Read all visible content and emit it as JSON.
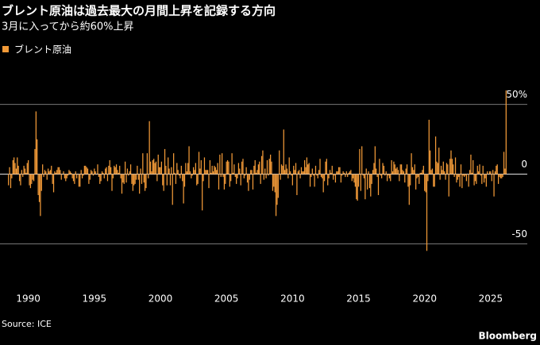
{
  "chart_data": {
    "type": "bar",
    "title": "ブレント原油は過去最大の月間上昇を記録する方向",
    "subtitle": "3月に入ってから約60%上昇",
    "source": "Source: ICE",
    "brand": "Bloomberg",
    "categories": [
      null,
      null,
      null,
      null,
      null,
      null,
      null,
      null,
      null,
      null,
      null,
      null,
      null,
      null,
      null,
      null,
      null,
      null,
      "1990",
      null,
      null,
      null,
      null,
      null,
      null,
      null,
      null,
      null,
      null,
      null,
      null,
      null,
      null,
      null,
      null,
      null,
      null,
      null,
      null,
      null,
      null,
      null,
      null,
      null,
      null,
      null,
      null,
      null,
      null,
      null,
      null,
      null,
      null,
      null,
      null,
      null,
      null,
      null,
      null,
      null,
      null,
      null,
      null,
      null,
      null,
      null,
      null,
      null,
      null,
      null,
      null,
      null,
      null,
      null,
      null,
      null,
      null,
      null,
      "1995",
      null,
      null,
      null,
      null,
      null,
      null,
      null,
      null,
      null,
      null,
      null,
      null,
      null,
      null,
      null,
      null,
      null,
      null,
      null,
      null,
      null,
      null,
      null,
      null,
      null,
      null,
      null,
      null,
      null,
      null,
      null,
      null,
      null,
      null,
      null,
      null,
      null,
      null,
      null,
      null,
      null,
      null,
      null,
      null,
      null,
      null,
      null,
      null,
      null,
      null,
      null,
      null,
      null,
      null,
      null,
      null,
      null,
      null,
      null,
      "2000",
      null,
      null,
      null,
      null,
      null,
      null,
      null,
      null,
      null,
      null,
      null,
      null,
      null,
      null,
      null,
      null,
      null,
      null,
      null,
      null,
      null,
      null,
      null,
      null,
      null,
      null,
      null,
      null,
      null,
      null,
      null,
      null,
      null,
      null,
      null,
      null,
      null,
      null,
      null,
      null,
      null,
      null,
      null,
      null,
      null,
      null,
      null,
      null,
      null,
      null,
      null,
      null,
      null,
      null,
      null,
      null,
      null,
      null,
      null,
      "2005",
      null,
      null,
      null,
      null,
      null,
      null,
      null,
      null,
      null,
      null,
      null,
      null,
      null,
      null,
      null,
      null,
      null,
      null,
      null,
      null,
      null,
      null,
      null,
      null,
      null,
      null,
      null,
      null,
      null,
      null,
      null,
      null,
      null,
      null,
      null,
      null,
      null,
      null,
      null,
      null,
      null,
      null,
      null,
      null,
      null,
      null,
      null,
      null,
      null,
      null,
      null,
      null,
      null,
      null,
      null,
      null,
      null,
      null,
      null,
      "2010",
      null,
      null,
      null,
      null,
      null,
      null,
      null,
      null,
      null,
      null,
      null,
      null,
      null,
      null,
      null,
      null,
      null,
      null,
      null,
      null,
      null,
      null,
      null,
      null,
      null,
      null,
      null,
      null,
      null,
      null,
      null,
      null,
      null,
      null,
      null,
      null,
      null,
      null,
      null,
      null,
      null,
      null,
      null,
      null,
      null,
      null,
      null,
      null,
      null,
      null,
      null,
      null,
      null,
      null,
      null,
      null,
      null,
      null,
      null,
      "2015",
      null,
      null,
      null,
      null,
      null,
      null,
      null,
      null,
      null,
      null,
      null,
      null,
      null,
      null,
      null,
      null,
      null,
      null,
      null,
      null,
      null,
      null,
      null,
      null,
      null,
      null,
      null,
      null,
      null,
      null,
      null,
      null,
      null,
      null,
      null,
      null,
      null,
      null,
      null,
      null,
      null,
      null,
      null,
      null,
      null,
      null,
      null,
      null,
      null,
      null,
      null,
      null,
      null,
      null,
      null,
      null,
      null,
      null,
      null,
      "2020",
      null,
      null,
      null,
      null,
      null,
      null,
      null,
      null,
      null,
      null,
      null,
      null,
      null,
      null,
      null,
      null,
      null,
      null,
      null,
      null,
      null,
      null,
      null,
      null,
      null,
      null,
      null,
      null,
      null,
      null,
      null,
      null,
      null,
      null,
      null,
      null,
      null,
      null,
      null,
      null,
      null,
      null,
      null,
      null,
      null,
      null,
      null,
      null,
      null,
      null,
      null,
      null,
      null,
      null,
      null,
      null,
      null,
      null,
      null,
      "2025",
      null,
      null,
      null,
      null,
      null,
      null,
      null,
      null,
      null,
      null,
      null,
      null,
      null,
      null
    ],
    "series": [
      {
        "name": "ブレント原油",
        "color": "#f29a38",
        "values": [
          -8,
          5,
          -10,
          -3,
          10,
          12,
          8,
          4,
          12,
          6,
          -5,
          -8,
          3,
          -2,
          6,
          4,
          1,
          8,
          10,
          -8,
          -10,
          -7,
          -4,
          -5,
          18,
          45,
          25,
          -15,
          -20,
          -30,
          -12,
          7,
          -2,
          3,
          2,
          -4,
          4,
          2,
          3,
          6,
          -7,
          -13,
          2,
          1,
          3,
          5,
          5,
          3,
          -4,
          0,
          2,
          -3,
          -5,
          -3,
          -1,
          3,
          2,
          1,
          -3,
          -5,
          -7,
          2,
          -3,
          0,
          -9,
          -9,
          3,
          -3,
          -1,
          6,
          6,
          5,
          4,
          -7,
          -4,
          3,
          2,
          -1,
          4,
          2,
          0,
          7,
          -2,
          -7,
          -5,
          2,
          1,
          -3,
          4,
          5,
          -5,
          6,
          10,
          5,
          -12,
          -3,
          6,
          5,
          7,
          3,
          1,
          6,
          -3,
          -14,
          -6,
          -7,
          9,
          -6,
          4,
          -1,
          2,
          7,
          -7,
          -12,
          -8,
          -7,
          -4,
          6,
          -4,
          -14,
          4,
          -7,
          15,
          -6,
          -12,
          -10,
          15,
          -3,
          38,
          9,
          2,
          10,
          11,
          8,
          9,
          -5,
          14,
          5,
          5,
          9,
          -8,
          -12,
          18,
          6,
          -8,
          12,
          4,
          -8,
          5,
          -22,
          15,
          1,
          -7,
          8,
          3,
          -1,
          -3,
          6,
          -5,
          -21,
          -9,
          8,
          2,
          8,
          20,
          2,
          -3,
          -1,
          5,
          3,
          8,
          -8,
          -7,
          16,
          4,
          10,
          -26,
          -5,
          12,
          3,
          3,
          3,
          -10,
          10,
          1,
          6,
          2,
          6,
          5,
          3,
          8,
          -11,
          14,
          -2,
          15,
          -2,
          -11,
          -7,
          9,
          10,
          9,
          -9,
          -5,
          15,
          1,
          7,
          -2,
          -7,
          -3,
          8,
          4,
          -8,
          9,
          11,
          -3,
          -1,
          5,
          -6,
          -12,
          -4,
          3,
          3,
          -11,
          6,
          10,
          1,
          3,
          7,
          9,
          -7,
          13,
          17,
          -4,
          4,
          -3,
          10,
          -1,
          11,
          14,
          9,
          -12,
          -9,
          -13,
          -30,
          -22,
          -17,
          17,
          -4,
          7,
          6,
          32,
          3,
          7,
          4,
          -3,
          12,
          2,
          -1,
          -8,
          6,
          3,
          8,
          -15,
          2,
          3,
          -3,
          5,
          2,
          2,
          10,
          5,
          12,
          7,
          8,
          -9,
          -2,
          4,
          -1,
          -9,
          6,
          -1,
          -3,
          3,
          11,
          -2,
          -3,
          -13,
          -5,
          9,
          11,
          -8,
          -3,
          3,
          1,
          6,
          -4,
          -1,
          -6,
          2,
          2,
          5,
          5,
          -6,
          -1,
          2,
          1,
          -2,
          2,
          -2,
          1,
          2,
          3,
          -5,
          -3,
          -6,
          -9,
          -18,
          -19,
          -9,
          18,
          -12,
          20,
          -1,
          -3,
          -18,
          4,
          -11,
          2,
          -10,
          -16,
          -7,
          3,
          8,
          20,
          4,
          -2,
          -15,
          11,
          -1,
          -3,
          8,
          6,
          -1,
          2,
          -5,
          -1,
          -3,
          -5,
          10,
          2,
          9,
          7,
          4,
          5,
          3,
          -5,
          7,
          7,
          3,
          2,
          -6,
          4,
          7,
          -9,
          -22,
          -8,
          15,
          5,
          3,
          7,
          -11,
          -3,
          -2,
          -7,
          1,
          1,
          3,
          6,
          -12,
          -13,
          -55,
          -5,
          39,
          17,
          3,
          4,
          -9,
          -9,
          27,
          9,
          8,
          19,
          -4,
          6,
          3,
          9,
          2,
          -4,
          8,
          7,
          -16,
          11,
          17,
          11,
          7,
          -2,
          12,
          -6,
          -4,
          -2,
          -9,
          7,
          -10,
          -1,
          -2,
          -1,
          -5,
          0,
          -9,
          3,
          14,
          1,
          10,
          -8,
          -5,
          -7,
          6,
          2,
          7,
          -1,
          -7,
          6,
          -6,
          -3,
          -9,
          2,
          0,
          2,
          2,
          -5,
          3,
          -16,
          2,
          6,
          7,
          -7,
          -2,
          -3,
          -3,
          -2,
          16,
          4,
          60
        ]
      }
    ],
    "ylim": [
      -77,
      68
    ],
    "yticks": [
      {
        "value": 50,
        "label": "50%"
      },
      0,
      -50
    ],
    "grid": true
  }
}
